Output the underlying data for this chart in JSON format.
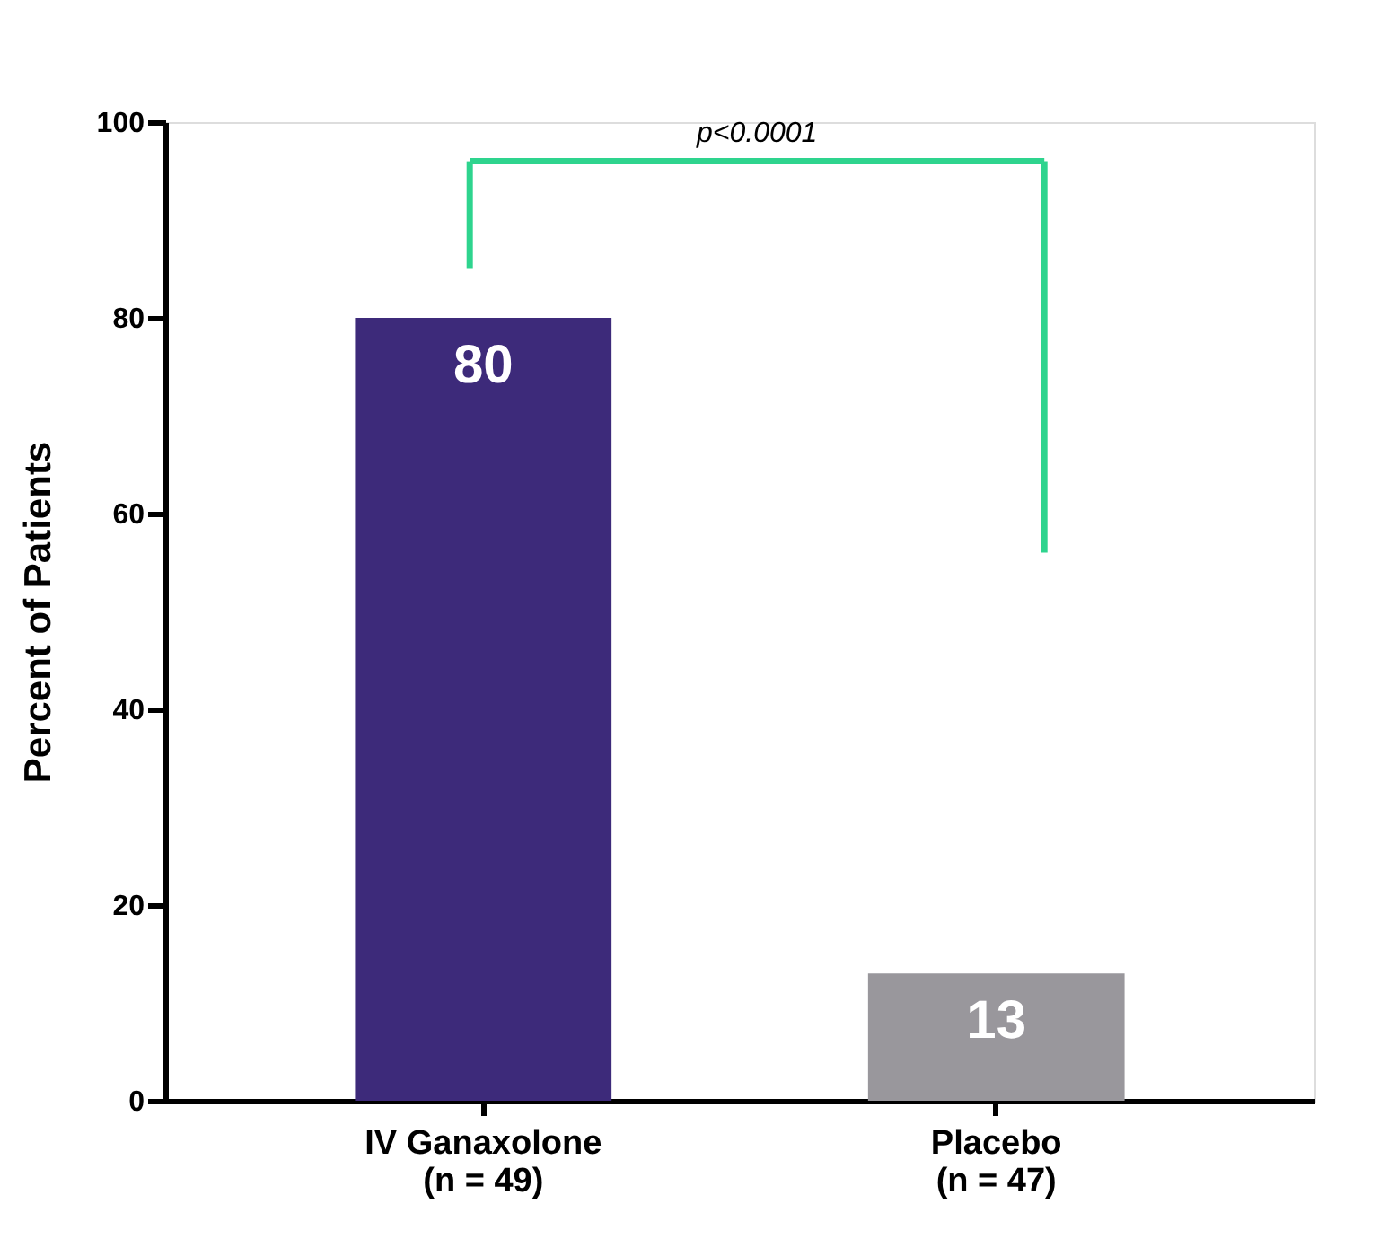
{
  "chart_data": {
    "type": "bar",
    "ylabel": "Percent of Patients",
    "categories": [
      "IV Ganaxolone\n(n = 49)",
      "Placebo\n(n = 47)"
    ],
    "values": [
      80,
      13
    ],
    "colors": [
      "#3d2a7a",
      "#99979c"
    ],
    "ylim": [
      0,
      100
    ],
    "yticks": [
      0,
      20,
      40,
      60,
      80,
      100
    ],
    "grid": false,
    "data_labels": true,
    "annotations": [
      "p<0.0001"
    ]
  }
}
